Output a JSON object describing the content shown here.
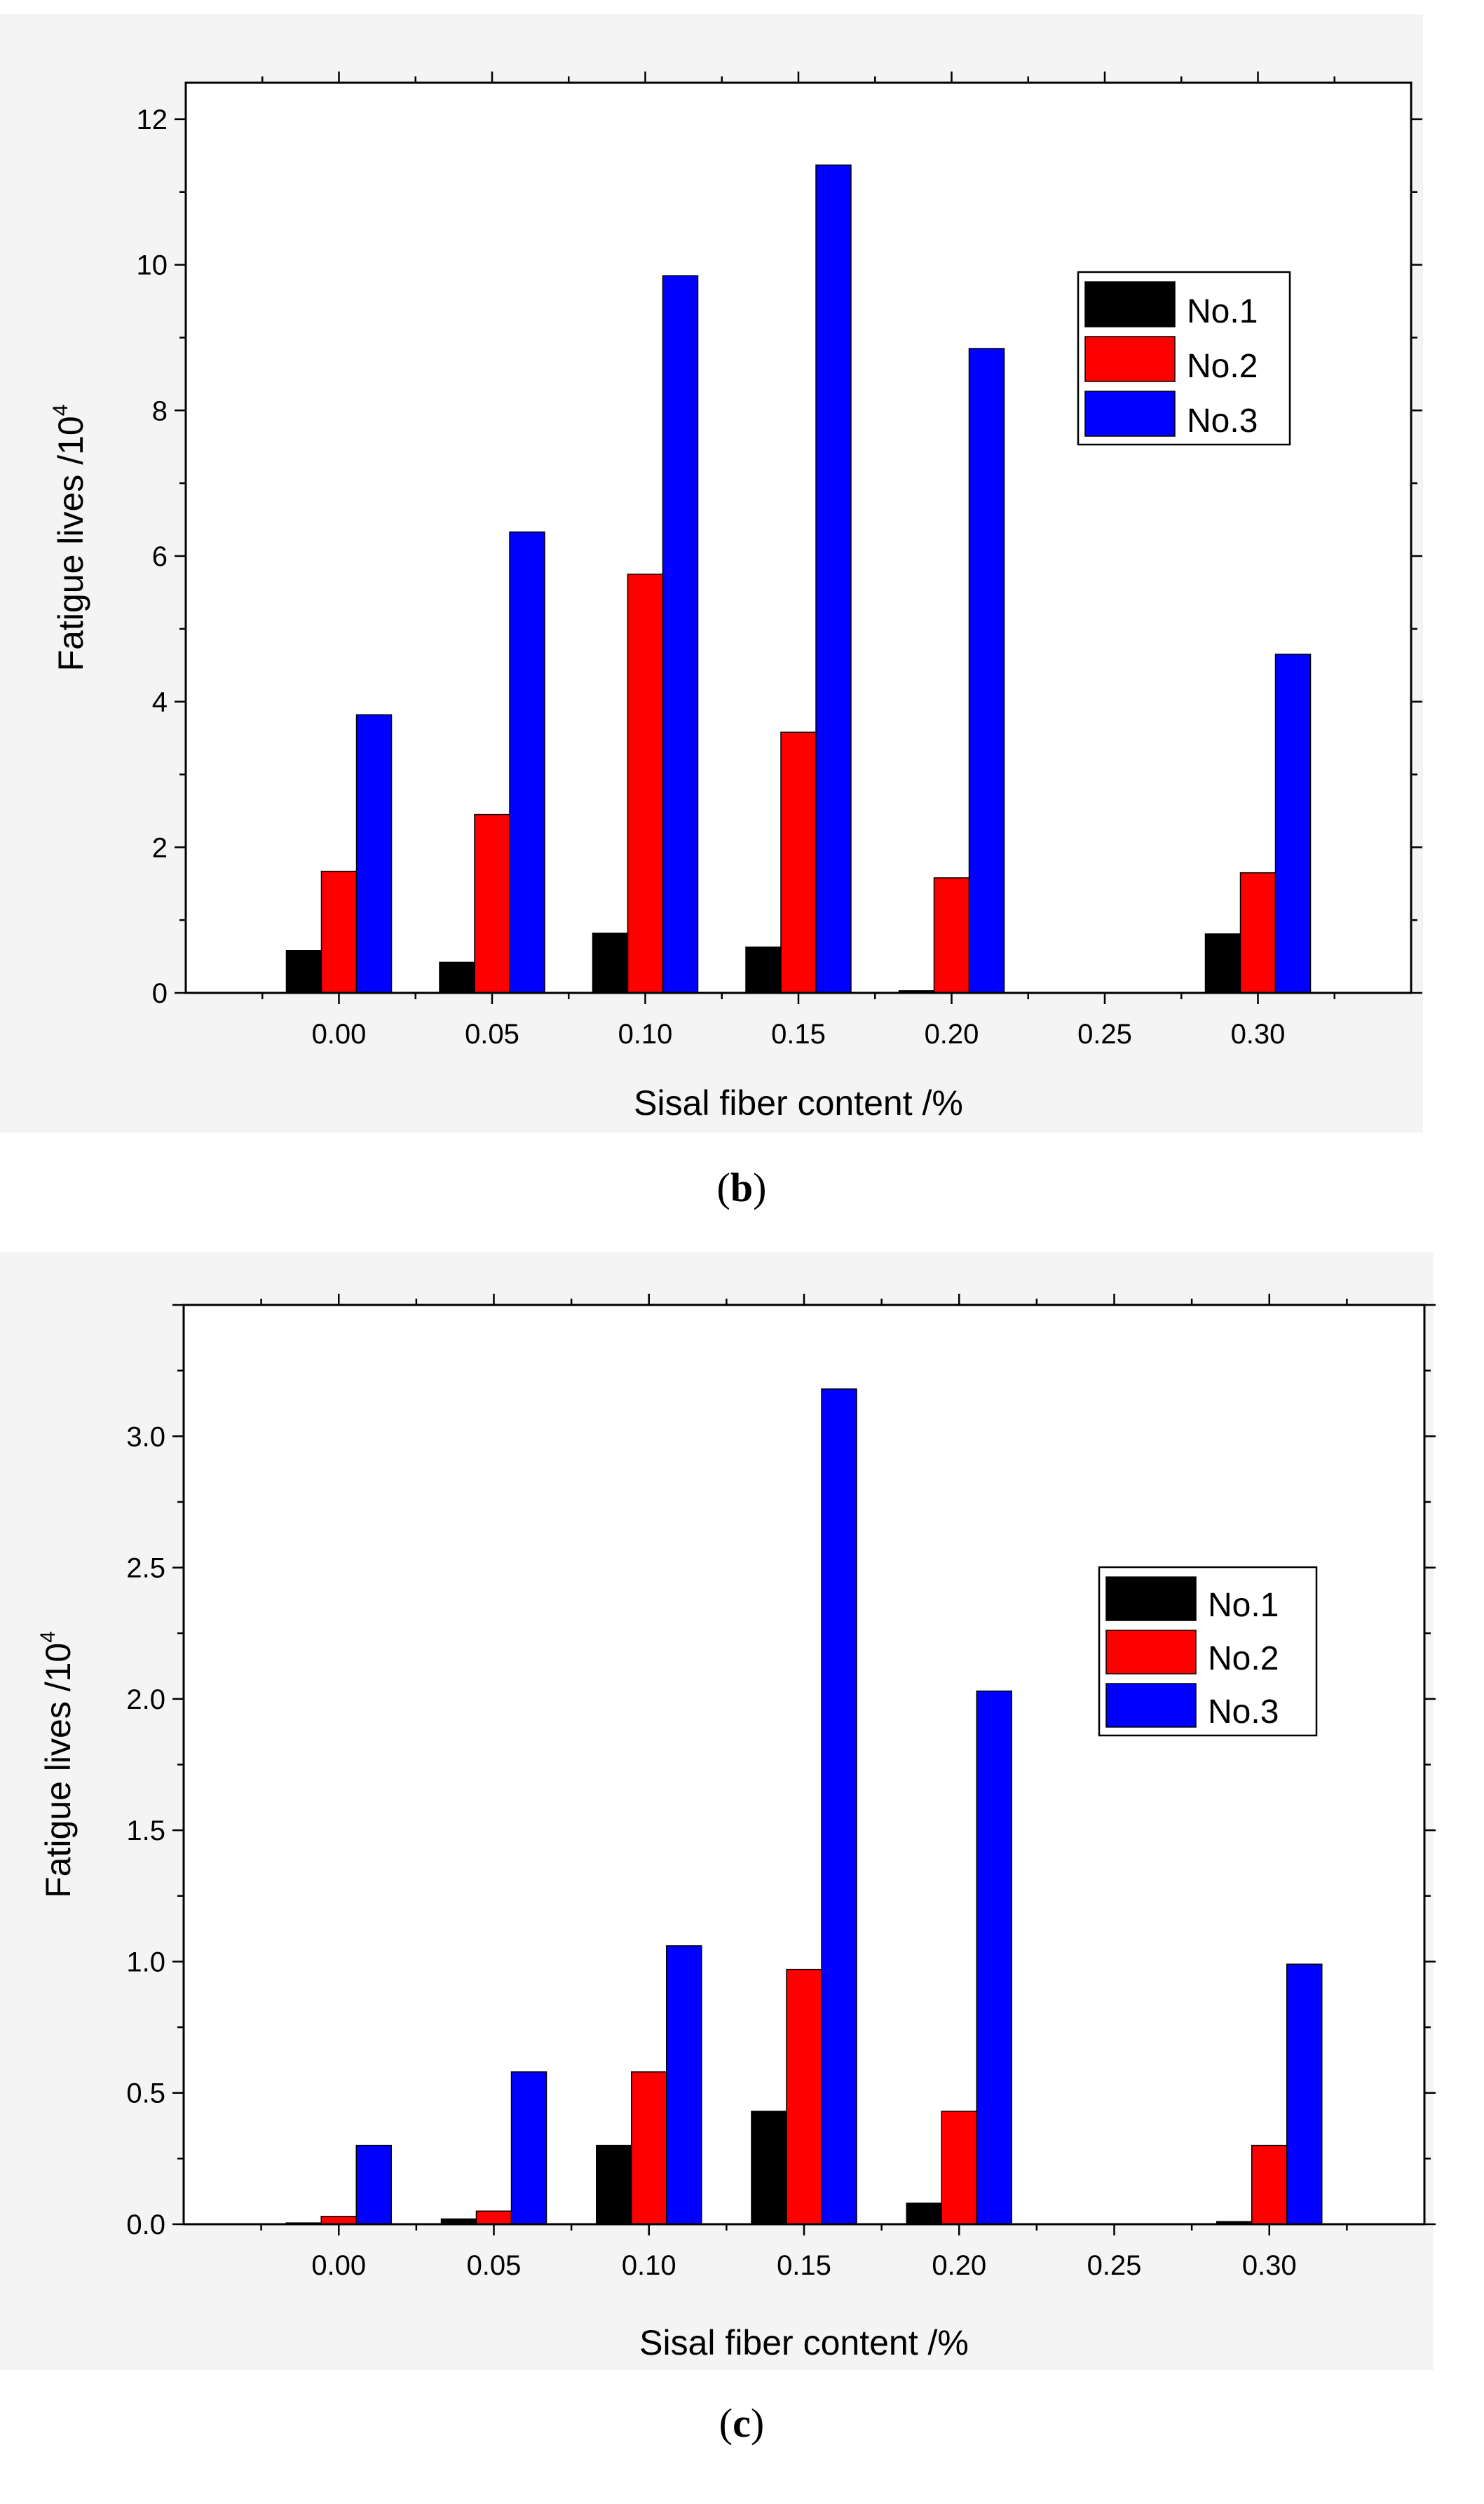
{
  "chart_data": [
    {
      "type": "bar",
      "panel_caption": {
        "open": "(",
        "letter": "b",
        "close": ")"
      },
      "title": "",
      "categories": [
        "0.00",
        "0.05",
        "0.10",
        "0.15",
        "0.20",
        "0.25",
        "0.30"
      ],
      "series": [
        {
          "name": "No.1",
          "color": "#000000",
          "values": [
            0.58,
            0.42,
            0.82,
            0.63,
            0.03,
            0,
            0.81
          ]
        },
        {
          "name": "No.2",
          "color": "#ff0000",
          "values": [
            1.67,
            2.45,
            5.75,
            3.58,
            1.58,
            0,
            1.65
          ]
        },
        {
          "name": "No.3",
          "color": "#0000ff",
          "values": [
            3.82,
            6.33,
            9.85,
            11.37,
            8.85,
            0,
            4.65
          ]
        }
      ],
      "xlabel": "Sisal fiber content   /%",
      "ylabel": {
        "text": "Fatigue lives  /10",
        "superscript": "4"
      },
      "ylim": [
        0,
        12.5
      ],
      "yticks": [
        0,
        2,
        4,
        6,
        8,
        10,
        12
      ],
      "ytick_labels": [
        "0",
        "2",
        "4",
        "6",
        "8",
        "10",
        "12"
      ],
      "legend_position": "upper-right"
    },
    {
      "type": "bar",
      "panel_caption": {
        "open": "(",
        "letter": "c",
        "close": ")"
      },
      "title": "",
      "categories": [
        "0.00",
        "0.05",
        "0.10",
        "0.15",
        "0.20",
        "0.25",
        "0.30"
      ],
      "series": [
        {
          "name": "No.1",
          "color": "#000000",
          "values": [
            0.005,
            0.02,
            0.3,
            0.43,
            0.08,
            0,
            0.01
          ]
        },
        {
          "name": "No.2",
          "color": "#ff0000",
          "values": [
            0.03,
            0.05,
            0.58,
            0.97,
            0.43,
            0,
            0.3
          ]
        },
        {
          "name": "No.3",
          "color": "#0000ff",
          "values": [
            0.3,
            0.58,
            1.06,
            3.18,
            2.03,
            0,
            0.99
          ]
        }
      ],
      "xlabel": "Sisal fiber content   /%",
      "ylabel": {
        "text": "Fatigue lives  /10",
        "superscript": "4"
      },
      "ylim": [
        0,
        3.5
      ],
      "yticks": [
        0,
        0.5,
        1.0,
        1.5,
        2.0,
        2.5,
        3.0
      ],
      "ytick_labels": [
        "0.0",
        "0.5",
        "1.0",
        "1.5",
        "2.0",
        "2.5",
        "3.0"
      ],
      "legend_position": "upper-right"
    }
  ]
}
